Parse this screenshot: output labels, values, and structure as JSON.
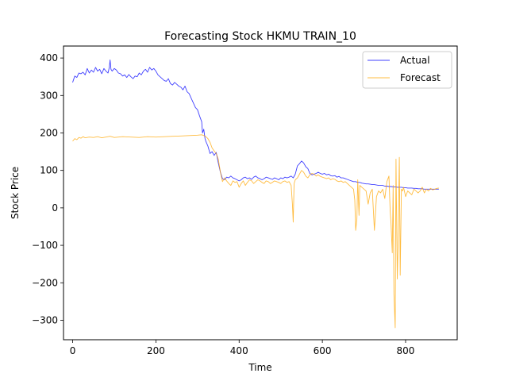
{
  "chart_data": {
    "type": "line",
    "title": "Forecasting Stock HKMU TRAIN_10",
    "xlabel": "Time",
    "ylabel": "Stock Price",
    "xlim": [
      -22,
      924
    ],
    "ylim": [
      -352,
      432
    ],
    "xticks": [
      0,
      200,
      400,
      600,
      800
    ],
    "yticks": [
      -300,
      -200,
      -100,
      0,
      100,
      200,
      300,
      400
    ],
    "xtick_labels": [
      "0",
      "200",
      "400",
      "600",
      "800"
    ],
    "ytick_labels": [
      "−300",
      "−200",
      "−100",
      "0",
      "100",
      "200",
      "300",
      "400"
    ],
    "grid": false,
    "legend_position": "upper right",
    "series": [
      {
        "name": "Actual",
        "color": "#0000ff",
        "x": [
          0,
          5,
          10,
          15,
          20,
          25,
          30,
          35,
          40,
          45,
          50,
          55,
          60,
          65,
          70,
          75,
          80,
          85,
          88,
          90,
          92,
          95,
          100,
          105,
          110,
          115,
          120,
          125,
          130,
          135,
          140,
          145,
          150,
          155,
          160,
          165,
          170,
          175,
          180,
          185,
          190,
          195,
          200,
          205,
          210,
          215,
          220,
          225,
          230,
          235,
          240,
          245,
          250,
          255,
          260,
          265,
          270,
          275,
          280,
          285,
          290,
          295,
          300,
          305,
          310,
          312,
          315,
          318,
          320,
          325,
          330,
          335,
          340,
          345,
          350,
          355,
          360,
          365,
          370,
          375,
          380,
          385,
          390,
          395,
          400,
          405,
          410,
          415,
          420,
          425,
          430,
          435,
          440,
          445,
          450,
          455,
          460,
          465,
          470,
          475,
          480,
          485,
          490,
          495,
          500,
          505,
          510,
          515,
          520,
          525,
          530,
          535,
          540,
          545,
          550,
          555,
          560,
          565,
          570,
          575,
          580,
          585,
          590,
          595,
          600,
          605,
          610,
          615,
          620,
          625,
          630,
          635,
          640,
          645,
          650,
          655,
          660,
          665,
          670,
          675,
          680,
          685,
          690,
          695,
          700,
          705,
          710,
          715,
          720,
          725,
          730,
          735,
          740,
          745,
          750,
          755,
          760,
          765,
          770,
          775,
          780,
          785,
          790,
          795,
          800,
          805,
          810,
          815,
          820,
          825,
          830,
          835,
          840,
          845,
          850,
          855,
          860,
          865,
          870,
          875,
          880
        ],
        "y": [
          335,
          352,
          348,
          360,
          358,
          362,
          355,
          372,
          360,
          368,
          362,
          375,
          365,
          370,
          358,
          372,
          365,
          360,
          375,
          395,
          370,
          365,
          372,
          368,
          360,
          358,
          352,
          355,
          348,
          356,
          350,
          345,
          352,
          350,
          360,
          355,
          365,
          370,
          362,
          375,
          368,
          372,
          365,
          355,
          350,
          345,
          340,
          338,
          345,
          332,
          328,
          335,
          330,
          325,
          322,
          315,
          325,
          310,
          305,
          292,
          280,
          268,
          262,
          245,
          230,
          200,
          210,
          185,
          178,
          165,
          145,
          150,
          140,
          148,
          120,
          95,
          78,
          75,
          82,
          80,
          85,
          80,
          78,
          75,
          72,
          75,
          80,
          82,
          78,
          80,
          76,
          82,
          85,
          80,
          78,
          75,
          78,
          82,
          80,
          78,
          76,
          80,
          78,
          75,
          80,
          78,
          82,
          80,
          82,
          85,
          80,
          90,
          112,
          118,
          125,
          120,
          110,
          105,
          92,
          88,
          90,
          92,
          95,
          92,
          90,
          92,
          88,
          90,
          86,
          85,
          86,
          82,
          84,
          80,
          80,
          78,
          76,
          74,
          72,
          70,
          70,
          68,
          68,
          66,
          65,
          64,
          64,
          63,
          62,
          62,
          61,
          60,
          60,
          60,
          58,
          58,
          57,
          57,
          56,
          56,
          55,
          55,
          55,
          54,
          54,
          53,
          53,
          53,
          52,
          52,
          51,
          51,
          51,
          50,
          50,
          50,
          50,
          50,
          50,
          50,
          50
        ]
      },
      {
        "name": "Forecast",
        "color": "#ffa500",
        "x": [
          0,
          5,
          10,
          15,
          20,
          25,
          30,
          40,
          50,
          60,
          70,
          80,
          90,
          100,
          120,
          140,
          160,
          180,
          200,
          220,
          240,
          260,
          280,
          300,
          310,
          318,
          320,
          325,
          330,
          335,
          340,
          345,
          350,
          355,
          360,
          365,
          370,
          375,
          380,
          385,
          390,
          395,
          400,
          405,
          410,
          415,
          420,
          425,
          430,
          435,
          440,
          445,
          450,
          455,
          460,
          465,
          470,
          475,
          480,
          485,
          490,
          495,
          500,
          505,
          510,
          515,
          520,
          525,
          528,
          530,
          532,
          535,
          540,
          545,
          550,
          555,
          560,
          565,
          570,
          575,
          580,
          585,
          590,
          595,
          600,
          605,
          610,
          615,
          620,
          625,
          630,
          635,
          640,
          645,
          650,
          655,
          660,
          665,
          670,
          675,
          678,
          680,
          683,
          685,
          688,
          690,
          695,
          700,
          705,
          710,
          715,
          720,
          725,
          730,
          735,
          740,
          745,
          750,
          755,
          760,
          763,
          765,
          768,
          770,
          772,
          775,
          777,
          780,
          782,
          785,
          787,
          790,
          793,
          795,
          800,
          805,
          810,
          815,
          820,
          825,
          830,
          835,
          840,
          845,
          850,
          855,
          860,
          865,
          870,
          875,
          880
        ],
        "y": [
          178,
          185,
          182,
          188,
          186,
          190,
          187,
          189,
          188,
          190,
          187,
          189,
          191,
          188,
          190,
          189,
          188,
          190,
          189,
          190,
          191,
          192,
          193,
          194,
          195,
          192,
          190,
          185,
          175,
          160,
          152,
          145,
          130,
          95,
          70,
          80,
          72,
          65,
          60,
          72,
          68,
          70,
          55,
          65,
          72,
          60,
          68,
          75,
          72,
          65,
          70,
          75,
          72,
          68,
          65,
          72,
          70,
          65,
          68,
          72,
          70,
          68,
          65,
          70,
          72,
          68,
          70,
          60,
          10,
          -38,
          65,
          75,
          80,
          90,
          100,
          95,
          85,
          80,
          88,
          92,
          90,
          85,
          88,
          84,
          82,
          80,
          78,
          80,
          75,
          78,
          76,
          72,
          70,
          72,
          68,
          70,
          65,
          60,
          55,
          50,
          20,
          -60,
          -30,
          75,
          -20,
          60,
          55,
          50,
          45,
          10,
          40,
          50,
          -60,
          30,
          45,
          40,
          50,
          25,
          70,
          85,
          -10,
          -40,
          -120,
          60,
          -230,
          -320,
          130,
          -190,
          -100,
          135,
          -180,
          50,
          45,
          55,
          30,
          45,
          40,
          35,
          50,
          45,
          40,
          45,
          55,
          40,
          50,
          45,
          52,
          48,
          50,
          52,
          53
        ]
      }
    ]
  }
}
